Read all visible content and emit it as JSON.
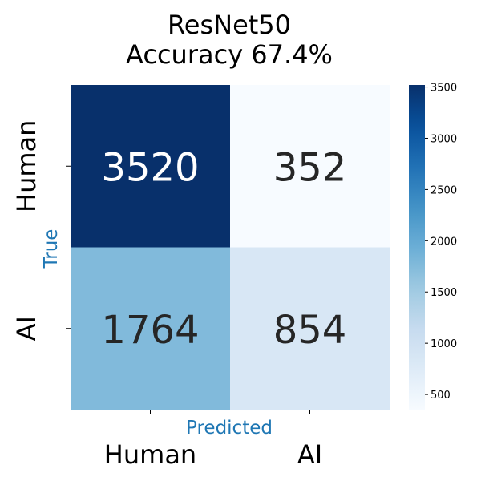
{
  "chart_data": {
    "type": "heatmap",
    "title_lines": [
      "ResNet50",
      "Accuracy 67.4%"
    ],
    "xlabel": "Predicted",
    "ylabel": "True",
    "x_categories": [
      "Human",
      "AI"
    ],
    "y_categories": [
      "Human",
      "AI"
    ],
    "values": [
      [
        3520,
        352
      ],
      [
        1764,
        854
      ]
    ],
    "value_range": [
      352,
      3520
    ],
    "colormap": "Blues",
    "colorbar": {
      "ticks": [
        500,
        1000,
        1500,
        2000,
        2500,
        3000,
        3500
      ],
      "tick_labels": [
        "500",
        "1000",
        "1500",
        "2000",
        "2500",
        "3000",
        "3500"
      ]
    },
    "colors": {
      "axis_label": "#1f77b4",
      "text_dark": "#262626",
      "text_light": "#ffffff"
    }
  }
}
